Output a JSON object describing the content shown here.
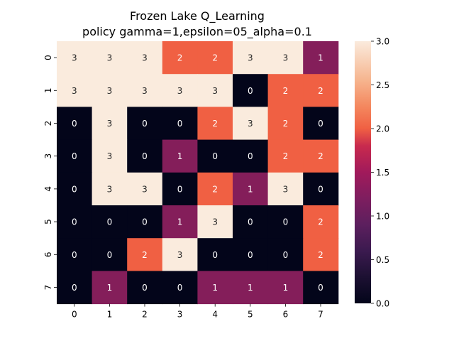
{
  "chart_data": {
    "type": "heatmap",
    "title": "Frozen Lake Q_Learning",
    "subtitle": "policy gamma=1,epsilon=05_alpha=0.1",
    "xlabel": "",
    "ylabel": "",
    "x_categories": [
      "0",
      "1",
      "2",
      "3",
      "4",
      "5",
      "6",
      "7"
    ],
    "y_categories": [
      "0",
      "1",
      "2",
      "3",
      "4",
      "5",
      "6",
      "7"
    ],
    "values": [
      [
        3,
        3,
        3,
        2,
        2,
        3,
        3,
        1
      ],
      [
        3,
        3,
        3,
        3,
        3,
        0,
        2,
        2
      ],
      [
        0,
        3,
        0,
        0,
        2,
        3,
        2,
        0
      ],
      [
        0,
        3,
        0,
        1,
        0,
        0,
        2,
        2
      ],
      [
        0,
        3,
        3,
        0,
        2,
        1,
        3,
        0
      ],
      [
        0,
        0,
        0,
        1,
        3,
        0,
        0,
        2
      ],
      [
        0,
        0,
        2,
        3,
        0,
        0,
        0,
        2
      ],
      [
        0,
        1,
        0,
        0,
        1,
        1,
        1,
        0
      ]
    ],
    "colorbar": {
      "min": 0.0,
      "max": 3.0,
      "ticks": [
        "0.0",
        "0.5",
        "1.0",
        "1.5",
        "2.0",
        "2.5",
        "3.0"
      ]
    },
    "colors": {
      "0": "#03051a",
      "1": "#841e5a",
      "2": "#f06043",
      "3": "#faebdd"
    },
    "colormap": "rocket",
    "annotated": true
  }
}
